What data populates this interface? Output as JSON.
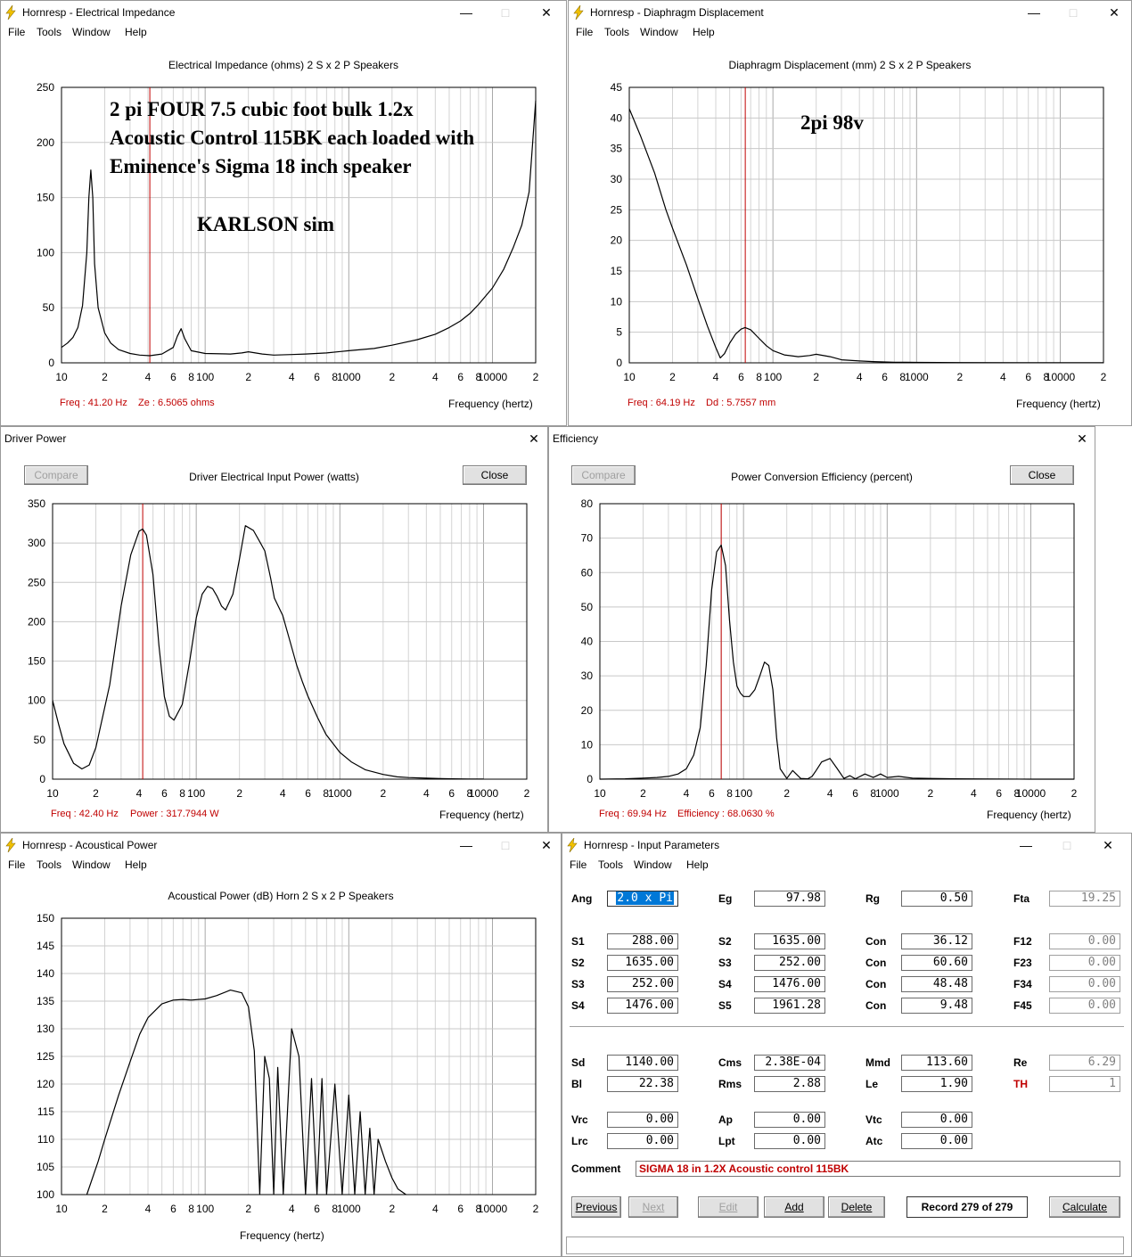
{
  "colors": {
    "curve": "#000000",
    "cursor": "#c00000",
    "grid": "#c8c8c8",
    "readout": "#c00000",
    "comment": "#c00000",
    "select_bg": "#0078d7"
  },
  "icons": {
    "app": "lightning-icon",
    "minimize": "minimize-icon",
    "maximize": "maximize-icon",
    "close": "close-icon"
  },
  "common": {
    "menu": [
      "File",
      "Tools",
      "Window",
      "Help"
    ],
    "x_ticks": [
      "10",
      "2",
      "4",
      "6",
      "8",
      "100",
      "2",
      "4",
      "6",
      "8",
      "1000",
      "2",
      "4",
      "6",
      "8",
      "10000",
      "2"
    ],
    "xlabel": "Frequency (hertz)",
    "compare": "Compare",
    "close": "Close"
  },
  "impedance": {
    "window_title": "Hornresp - Electrical Impedance",
    "title": "Electrical Impedance (ohms)   2 S x 2 P Speakers",
    "y_ticks": [
      "250",
      "200",
      "150",
      "100",
      "50",
      "0"
    ],
    "freq": "Freq : 41.20 Hz",
    "val": "Ze : 6.5065 ohms",
    "annotation": [
      "2 pi  FOUR 7.5 cubic foot bulk  1.2x",
      "Acoustic Control 115BK each loaded with",
      "Eminence's Sigma 18 inch speaker"
    ],
    "annotation2": "KARLSON  sim"
  },
  "displacement": {
    "window_title": "Hornresp - Diaphragm Displacement",
    "title": "Diaphragm Displacement (mm)   2 S x 2 P Speakers",
    "y_ticks": [
      "45",
      "40",
      "35",
      "30",
      "25",
      "20",
      "15",
      "10",
      "5",
      "0"
    ],
    "freq": "Freq : 64.19 Hz",
    "val": "Dd : 5.7557 mm",
    "annotation": "2pi  98v"
  },
  "power": {
    "window_title": "Driver Power",
    "title": "Driver Electrical Input Power (watts)",
    "y_ticks": [
      "350",
      "300",
      "250",
      "200",
      "150",
      "100",
      "50",
      "0"
    ],
    "freq": "Freq : 42.40 Hz",
    "val": "Power : 317.7944 W"
  },
  "efficiency": {
    "window_title": "Efficiency",
    "title": "Power Conversion Efficiency (percent)",
    "y_ticks": [
      "80",
      "70",
      "60",
      "50",
      "40",
      "30",
      "20",
      "10",
      "0"
    ],
    "freq": "Freq : 69.94 Hz",
    "val": "Efficiency : 68.0630 %"
  },
  "acoustic": {
    "window_title": "Hornresp - Acoustical Power",
    "title": "Acoustical Power (dB)   Horn   2 S x 2 P Speakers",
    "y_ticks": [
      "150",
      "145",
      "140",
      "135",
      "130",
      "125",
      "120",
      "115",
      "110",
      "105",
      "100"
    ]
  },
  "inputs": {
    "window_title": "Hornresp - Input Parameters",
    "ang_label": "Ang",
    "ang_value": "2.0 x Pi",
    "row0": [
      {
        "label": "Eg",
        "value": "97.98"
      },
      {
        "label": "Rg",
        "value": "0.50"
      },
      {
        "label": "Fta",
        "value": "19.25"
      }
    ],
    "rows": [
      [
        {
          "label": "S1",
          "value": "288.00"
        },
        {
          "label": "S2",
          "value": "1635.00"
        },
        {
          "label": "Con",
          "value": "36.12"
        },
        {
          "label": "F12",
          "value": "0.00"
        }
      ],
      [
        {
          "label": "S2",
          "value": "1635.00"
        },
        {
          "label": "S3",
          "value": "252.00"
        },
        {
          "label": "Con",
          "value": "60.60"
        },
        {
          "label": "F23",
          "value": "0.00"
        }
      ],
      [
        {
          "label": "S3",
          "value": "252.00"
        },
        {
          "label": "S4",
          "value": "1476.00"
        },
        {
          "label": "Con",
          "value": "48.48"
        },
        {
          "label": "F34",
          "value": "0.00"
        }
      ],
      [
        {
          "label": "S4",
          "value": "1476.00"
        },
        {
          "label": "S5",
          "value": "1961.28"
        },
        {
          "label": "Con",
          "value": "9.48"
        },
        {
          "label": "F45",
          "value": "0.00"
        }
      ],
      [
        {
          "label": "Sd",
          "value": "1140.00"
        },
        {
          "label": "Cms",
          "value": "2.38E-04"
        },
        {
          "label": "Mmd",
          "value": "113.60"
        },
        {
          "label": "Re",
          "value": "6.29"
        }
      ],
      [
        {
          "label": "Bl",
          "value": "22.38"
        },
        {
          "label": "Rms",
          "value": "2.88"
        },
        {
          "label": "Le",
          "value": "1.90"
        },
        {
          "label": "TH",
          "value": "1"
        }
      ],
      [
        {
          "label": "Vrc",
          "value": "0.00"
        },
        {
          "label": "Ap",
          "value": "0.00"
        },
        {
          "label": "Vtc",
          "value": "0.00"
        }
      ],
      [
        {
          "label": "Lrc",
          "value": "0.00"
        },
        {
          "label": "Lpt",
          "value": "0.00"
        },
        {
          "label": "Atc",
          "value": "0.00"
        }
      ]
    ],
    "comment_label": "Comment",
    "comment": "SIGMA 18 in 1.2X Acoustic control 115BK",
    "buttons": {
      "previous": "Previous",
      "next": "Next",
      "edit": "Edit",
      "add": "Add",
      "delete": "Delete",
      "calculate": "Calculate"
    },
    "record": "Record 279 of 279"
  },
  "chart_data": [
    {
      "type": "line",
      "title": "Electrical Impedance (ohms)   2 S x 2 P Speakers",
      "xlabel": "Frequency (hertz)",
      "ylabel": "",
      "xscale": "log",
      "xlim": [
        10,
        20000
      ],
      "ylim": [
        0,
        250
      ],
      "cursor_x": 41.2,
      "x": [
        10,
        11,
        12,
        13,
        14,
        15,
        15.5,
        16,
        16.5,
        17,
        18,
        20,
        22,
        25,
        30,
        35,
        41.2,
        50,
        60,
        64,
        68,
        72,
        80,
        100,
        150,
        180,
        200,
        250,
        300,
        400,
        500,
        700,
        1000,
        1500,
        2000,
        3000,
        4000,
        5000,
        6000,
        7000,
        8000,
        10000,
        12000,
        14000,
        16000,
        18000,
        20000
      ],
      "y": [
        14,
        18,
        23,
        32,
        52,
        100,
        150,
        175,
        150,
        90,
        50,
        27,
        18,
        12,
        8.5,
        7,
        6.5,
        8,
        14,
        24,
        31,
        22,
        11,
        8.5,
        8,
        9,
        10,
        8,
        7,
        7.5,
        8,
        9,
        11,
        13,
        16,
        21,
        26,
        32,
        38,
        45,
        53,
        68,
        85,
        105,
        125,
        155,
        238
      ]
    },
    {
      "type": "line",
      "title": "Diaphragm Displacement (mm)   2 S x 2 P Speakers",
      "xlabel": "Frequency (hertz)",
      "ylabel": "",
      "xscale": "log",
      "xlim": [
        10,
        20000
      ],
      "ylim": [
        0,
        45
      ],
      "cursor_x": 64.19,
      "x": [
        10,
        12,
        15,
        18,
        20,
        25,
        30,
        35,
        40,
        43,
        46,
        50,
        55,
        60,
        64,
        70,
        80,
        90,
        100,
        120,
        150,
        180,
        200,
        250,
        300,
        400,
        500,
        700,
        1000,
        2000,
        5000,
        10000,
        20000
      ],
      "y": [
        41.5,
        37,
        31,
        25,
        22,
        16,
        10.5,
        6,
        2.5,
        0.8,
        1.5,
        3.2,
        4.7,
        5.5,
        5.76,
        5.4,
        4,
        2.8,
        2,
        1.3,
        1,
        1.2,
        1.4,
        1,
        0.5,
        0.3,
        0.2,
        0.1,
        0.08,
        0.05,
        0.03,
        0.02,
        0.01
      ]
    },
    {
      "type": "line",
      "title": "Driver Electrical Input Power (watts)",
      "xlabel": "Frequency (hertz)",
      "ylabel": "",
      "xscale": "log",
      "xlim": [
        10,
        20000
      ],
      "ylim": [
        0,
        350
      ],
      "cursor_x": 42.4,
      "x": [
        10,
        11,
        12,
        14,
        16,
        18,
        20,
        25,
        30,
        35,
        40,
        42.4,
        45,
        50,
        55,
        60,
        65,
        70,
        80,
        90,
        100,
        110,
        120,
        130,
        140,
        150,
        160,
        180,
        200,
        220,
        250,
        280,
        300,
        330,
        350,
        400,
        450,
        500,
        550,
        600,
        700,
        800,
        1000,
        1200,
        1500,
        2000,
        2500,
        3000,
        4000,
        5000,
        6000,
        7000,
        8000,
        10000
      ],
      "y": [
        100,
        70,
        45,
        20,
        13,
        18,
        40,
        120,
        220,
        285,
        315,
        317.8,
        310,
        260,
        170,
        105,
        80,
        75,
        95,
        150,
        205,
        235,
        245,
        242,
        232,
        220,
        215,
        235,
        280,
        322,
        316,
        300,
        290,
        255,
        230,
        208,
        175,
        145,
        123,
        105,
        78,
        57,
        34,
        22,
        12,
        6,
        3,
        2,
        1.2,
        0.8,
        0.5,
        0.3,
        0.2,
        0.1
      ]
    },
    {
      "type": "line",
      "title": "Power Conversion Efficiency (percent)",
      "xlabel": "Frequency (hertz)",
      "ylabel": "",
      "xscale": "log",
      "xlim": [
        10,
        20000
      ],
      "ylim": [
        0,
        80
      ],
      "cursor_x": 69.94,
      "x": [
        10,
        15,
        20,
        25,
        30,
        35,
        40,
        45,
        50,
        55,
        60,
        65,
        69.94,
        75,
        80,
        85,
        90,
        95,
        100,
        110,
        120,
        130,
        140,
        150,
        160,
        170,
        180,
        200,
        220,
        250,
        280,
        300,
        320,
        350,
        400,
        450,
        500,
        550,
        600,
        700,
        800,
        900,
        1000,
        1200,
        1500,
        2000,
        3000,
        10000,
        20000
      ],
      "y": [
        0,
        0.1,
        0.3,
        0.5,
        0.8,
        1.5,
        3,
        7,
        15,
        33,
        55,
        66,
        68,
        62,
        46,
        34,
        27,
        25,
        24,
        24,
        26,
        30,
        34,
        33,
        26,
        12,
        3,
        0.2,
        2.5,
        0.2,
        0.1,
        0.8,
        2.5,
        5,
        6,
        3,
        0.2,
        1,
        0.1,
        1.5,
        0.5,
        1.5,
        0.5,
        0.8,
        0.3,
        0.2,
        0.1,
        0,
        0
      ]
    },
    {
      "type": "line",
      "title": "Acoustical Power (dB)   Horn   2 S x 2 P Speakers",
      "xlabel": "Frequency (hertz)",
      "ylabel": "",
      "xscale": "log",
      "xlim": [
        10,
        20000
      ],
      "ylim": [
        100,
        150
      ],
      "x": [
        15,
        18,
        20,
        25,
        30,
        35,
        40,
        50,
        60,
        70,
        80,
        100,
        120,
        150,
        180,
        200,
        220,
        240,
        260,
        280,
        300,
        320,
        350,
        400,
        450,
        500,
        550,
        600,
        650,
        700,
        800,
        900,
        1000,
        1100,
        1200,
        1300,
        1400,
        1500,
        1600,
        1800,
        2000,
        2200,
        2500
      ],
      "y": [
        100,
        106,
        110,
        118,
        124,
        129,
        132,
        134.5,
        135.2,
        135.3,
        135.2,
        135.4,
        136,
        137,
        136.5,
        134,
        126,
        100,
        125,
        121,
        100,
        123,
        100,
        130,
        125,
        100,
        121,
        100,
        121,
        100,
        120,
        100,
        118,
        100,
        115,
        100,
        112,
        100,
        110,
        106,
        103,
        101,
        100
      ]
    }
  ]
}
